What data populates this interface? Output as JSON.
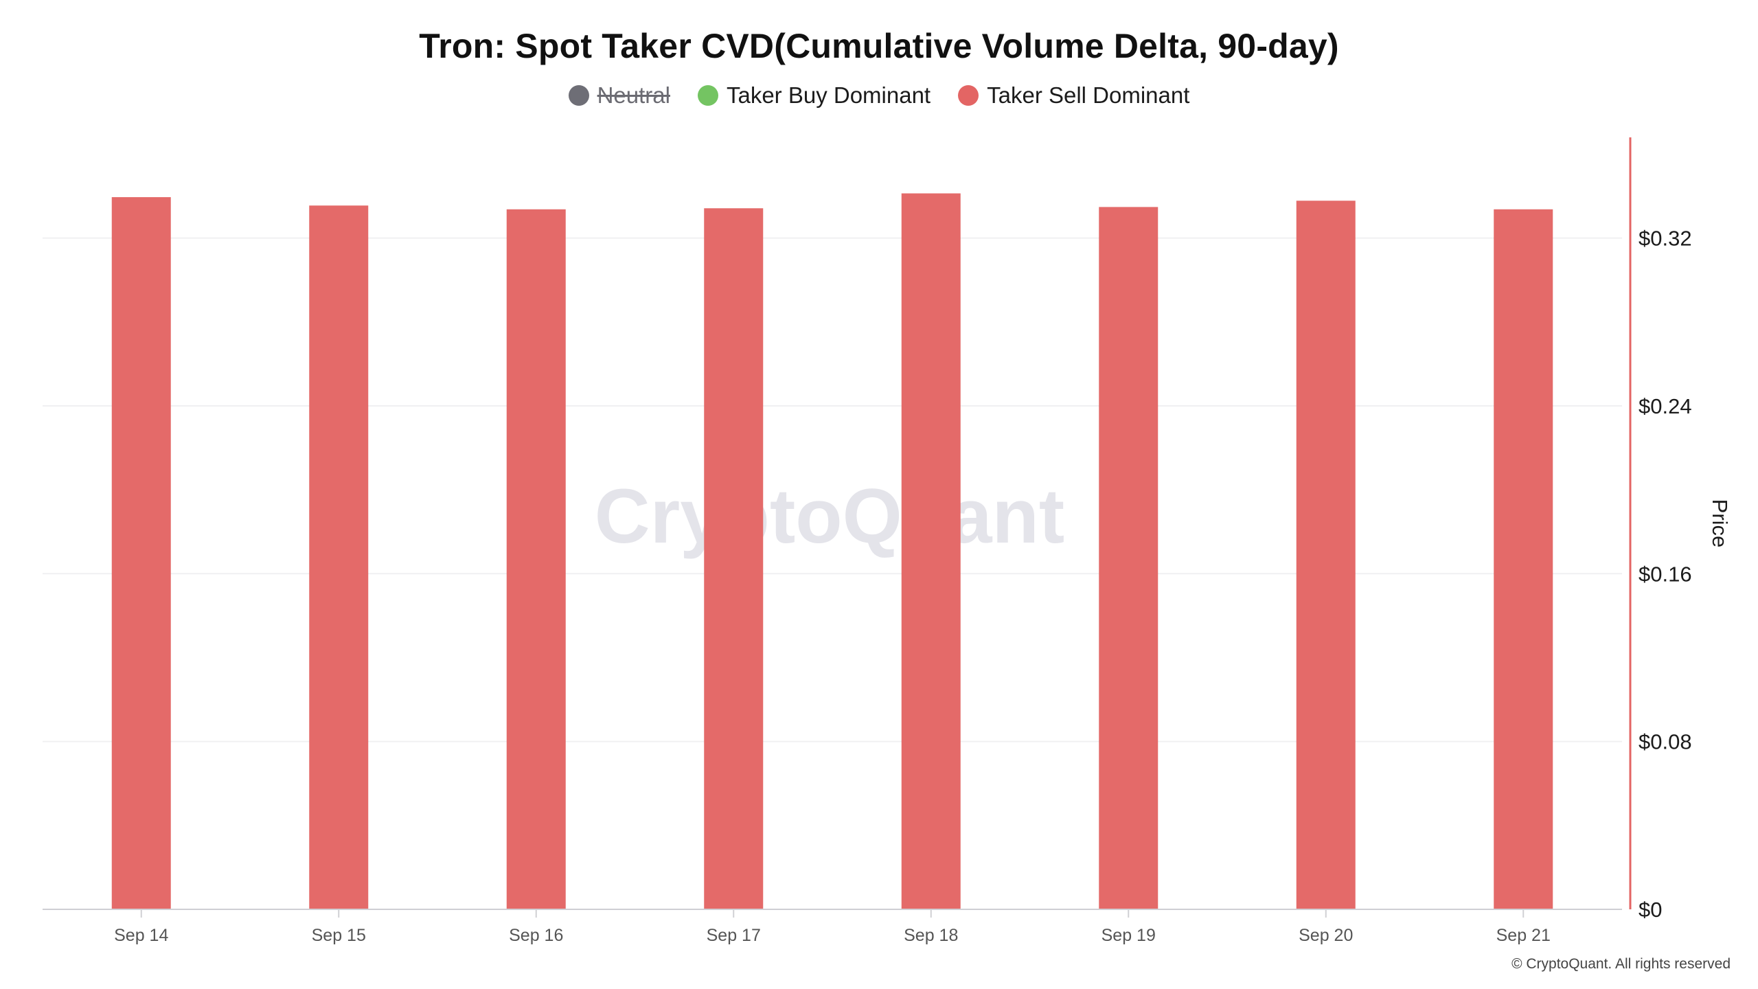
{
  "title": "Tron: Spot Taker CVD(Cumulative Volume Delta, 90-day)",
  "legend": [
    {
      "label": "Neutral",
      "color": "#6e6e76",
      "hidden": true
    },
    {
      "label": "Taker Buy Dominant",
      "color": "#74c462",
      "hidden": false
    },
    {
      "label": "Taker Sell Dominant",
      "color": "#e36564",
      "hidden": false
    }
  ],
  "watermark": "CryptoQuant",
  "copyright": "© CryptoQuant. All rights reserved",
  "chart_data": {
    "type": "bar",
    "title": "Tron: Spot Taker CVD(Cumulative Volume Delta, 90-day)",
    "categories": [
      "Sep 14",
      "Sep 15",
      "Sep 16",
      "Sep 17",
      "Sep 18",
      "Sep 19",
      "Sep 20",
      "Sep 21"
    ],
    "series": [
      {
        "name": "Taker Sell Dominant",
        "color": "#e36564",
        "values": [
          0.3395,
          0.3355,
          0.3337,
          0.3342,
          0.3413,
          0.3348,
          0.3378,
          0.3337
        ]
      }
    ],
    "ylabel": "Price",
    "ylim": [
      0,
      0.368
    ],
    "yticks": [
      {
        "value": 0,
        "label": "$0"
      },
      {
        "value": 0.08,
        "label": "$0.08"
      },
      {
        "value": 0.16,
        "label": "$0.16"
      },
      {
        "value": 0.24,
        "label": "$0.24"
      },
      {
        "value": 0.32,
        "label": "$0.32"
      }
    ],
    "y_axis_side": "right",
    "y_axis_color": "#e36564",
    "grid": true,
    "legend_position": "top-center"
  }
}
